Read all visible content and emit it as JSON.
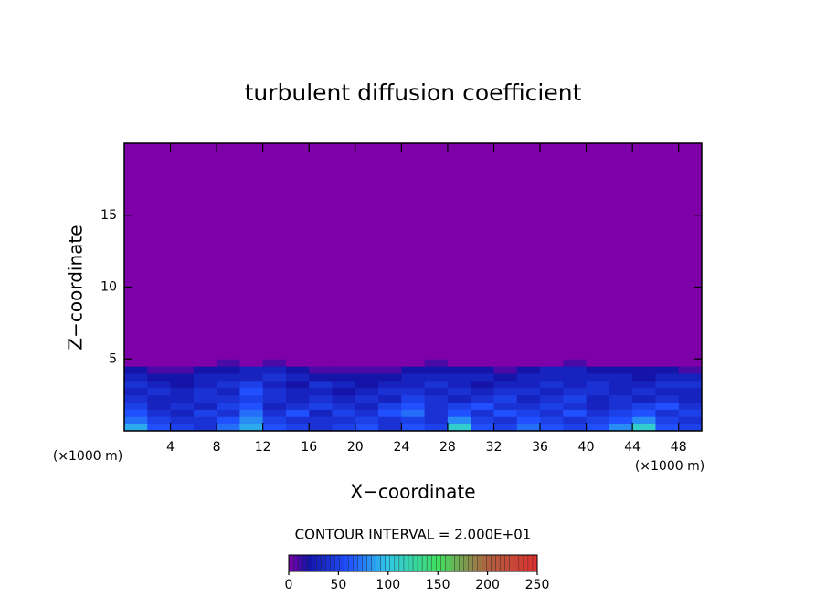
{
  "chart_data": {
    "type": "contour",
    "title": "turbulent diffusion coefficient",
    "xlabel": "X−coordinate",
    "ylabel": "Z−coordinate",
    "xunit": "(×1000 m)",
    "yunit": "(×1000 m)",
    "contour_interval_label": "CONTOUR INTERVAL = 2.000E+01",
    "xlim": [
      0,
      50
    ],
    "ylim": [
      0,
      20
    ],
    "xticks": [
      4,
      8,
      12,
      16,
      20,
      24,
      28,
      32,
      36,
      40,
      44,
      48
    ],
    "yticks": [
      5,
      10,
      15
    ],
    "xbins": [
      0,
      2,
      4,
      6,
      8,
      10,
      12,
      14,
      16,
      18,
      20,
      22,
      24,
      26,
      28,
      30,
      32,
      34,
      36,
      38,
      40,
      42,
      44,
      46,
      48,
      50
    ],
    "ybins": [
      0,
      0.5,
      1,
      1.5,
      2,
      2.5,
      3,
      3.5,
      4,
      4.5,
      5,
      20
    ],
    "values": [
      [
        90,
        60,
        50,
        40,
        70,
        90,
        60,
        50,
        40,
        50,
        60,
        40,
        60,
        50,
        110,
        60,
        50,
        70,
        60,
        50,
        60,
        80,
        110,
        60,
        50
      ],
      [
        70,
        50,
        40,
        40,
        60,
        80,
        50,
        40,
        40,
        40,
        50,
        40,
        50,
        40,
        80,
        50,
        40,
        60,
        50,
        40,
        50,
        60,
        80,
        50,
        40
      ],
      [
        60,
        40,
        30,
        50,
        40,
        70,
        40,
        60,
        30,
        50,
        40,
        60,
        70,
        40,
        60,
        40,
        60,
        50,
        40,
        60,
        40,
        50,
        60,
        40,
        50
      ],
      [
        50,
        30,
        40,
        30,
        50,
        60,
        30,
        40,
        50,
        40,
        30,
        50,
        60,
        40,
        50,
        60,
        40,
        40,
        50,
        40,
        30,
        40,
        50,
        60,
        40
      ],
      [
        40,
        30,
        30,
        40,
        40,
        50,
        40,
        30,
        40,
        30,
        40,
        30,
        50,
        40,
        30,
        40,
        50,
        30,
        40,
        50,
        30,
        40,
        30,
        40,
        30
      ],
      [
        30,
        40,
        30,
        40,
        30,
        60,
        40,
        30,
        30,
        20,
        30,
        40,
        40,
        30,
        40,
        30,
        40,
        40,
        30,
        40,
        40,
        30,
        40,
        30,
        30
      ],
      [
        40,
        30,
        20,
        30,
        40,
        50,
        30,
        20,
        40,
        30,
        20,
        30,
        30,
        40,
        30,
        20,
        30,
        30,
        40,
        30,
        40,
        30,
        30,
        40,
        40
      ],
      [
        30,
        20,
        20,
        30,
        30,
        30,
        40,
        30,
        20,
        20,
        20,
        20,
        30,
        30,
        30,
        30,
        20,
        30,
        30,
        30,
        30,
        30,
        20,
        30,
        30
      ],
      [
        20,
        10,
        10,
        20,
        20,
        30,
        30,
        20,
        10,
        10,
        10,
        10,
        20,
        20,
        20,
        20,
        10,
        20,
        30,
        30,
        20,
        20,
        20,
        20,
        10
      ],
      [
        0,
        0,
        0,
        0,
        10,
        0,
        10,
        0,
        0,
        0,
        0,
        0,
        0,
        10,
        0,
        0,
        0,
        0,
        0,
        10,
        0,
        0,
        0,
        0,
        0
      ],
      [
        0,
        0,
        0,
        0,
        0,
        0,
        0,
        0,
        0,
        0,
        0,
        0,
        0,
        0,
        0,
        0,
        0,
        0,
        0,
        0,
        0,
        0,
        0,
        0,
        0
      ]
    ],
    "colorscale": [
      [
        0,
        "#7d00a8"
      ],
      [
        20,
        "#1414a8"
      ],
      [
        60,
        "#2050ff"
      ],
      [
        100,
        "#30c8e8"
      ],
      [
        150,
        "#40e060"
      ],
      [
        200,
        "#b06040"
      ],
      [
        250,
        "#e03030"
      ]
    ],
    "clim": [
      0,
      250
    ],
    "cticks": [
      0,
      50,
      100,
      150,
      200,
      250
    ]
  }
}
